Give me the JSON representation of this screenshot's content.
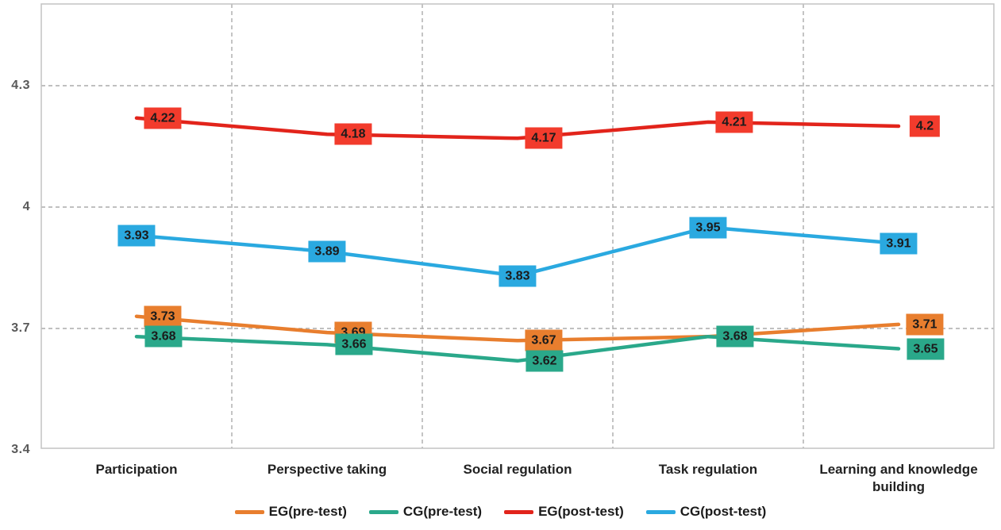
{
  "chart_data": {
    "type": "line",
    "title": "",
    "xlabel": "",
    "ylabel": "",
    "categories": [
      "Participation",
      "Perspective taking",
      "Social regulation",
      "Task regulation",
      "Learning and knowledge building"
    ],
    "series": [
      {
        "name": "EG(pre-test)",
        "color": "#E87E2E",
        "label_bg": "#E87E2E",
        "values": [
          3.73,
          3.69,
          3.67,
          3.68,
          3.71
        ],
        "labels": [
          "3.73",
          "3.69",
          "3.67",
          null,
          "3.71"
        ]
      },
      {
        "name": "CG(pre-test)",
        "color": "#2AA88A",
        "label_bg": "#2AA88A",
        "values": [
          3.68,
          3.66,
          3.62,
          3.68,
          3.65
        ],
        "labels": [
          "3.68",
          "3.66",
          "3.62",
          "3.68",
          "3.65"
        ]
      },
      {
        "name": "EG(post-test)",
        "color": "#E2241B",
        "label_bg": "#F23B2C",
        "values": [
          4.22,
          4.18,
          4.17,
          4.21,
          4.2
        ],
        "labels": [
          "4.22",
          "4.18",
          "4.17",
          "4.21",
          "4.2"
        ]
      },
      {
        "name": "CG(post-test)",
        "color": "#2AA9E0",
        "label_bg": "#2AA9E0",
        "values": [
          3.93,
          3.89,
          3.83,
          3.95,
          3.91
        ],
        "labels": [
          "3.93",
          "3.89",
          "3.83",
          "3.95",
          "3.91"
        ]
      }
    ],
    "yticks": [
      {
        "label": "4.3",
        "value": 4.3
      },
      {
        "label": "4",
        "value": 4.0
      },
      {
        "label": "3.7",
        "value": 3.7
      },
      {
        "label": "3.4",
        "value": 3.4
      }
    ],
    "ylim": [
      3.4,
      4.5
    ],
    "grid": "dashed",
    "grid_color": "#ABABAB",
    "border_color": "#C3C3C3",
    "legend_position": "bottom"
  }
}
